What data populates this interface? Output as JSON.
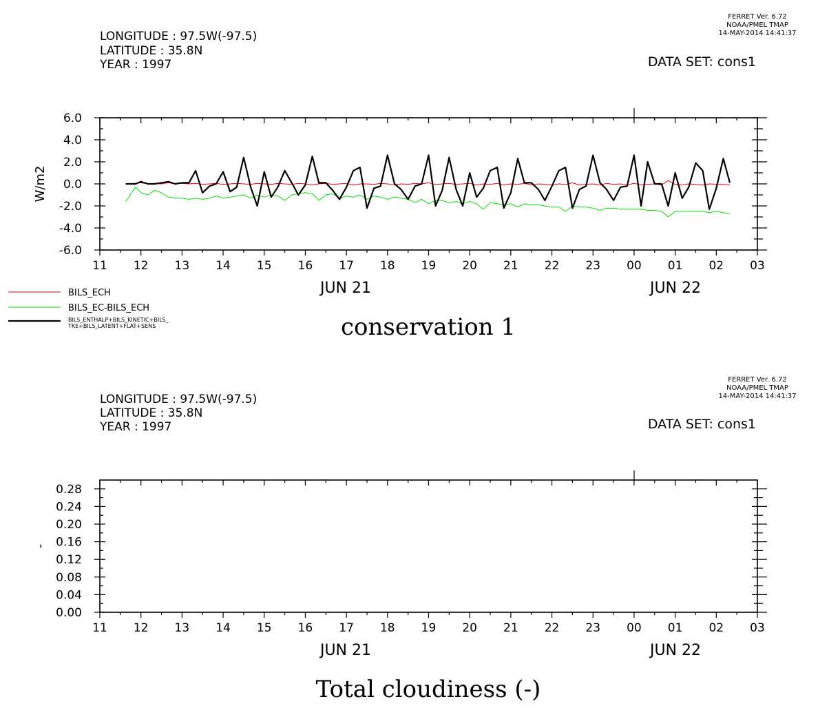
{
  "colors": {
    "red": "#e8000b",
    "green": "#00e000",
    "black": "#000000"
  },
  "panels": [
    {
      "header": {
        "ferret_version": "FERRET Ver. 6.72",
        "ferret_org": "NOAA/PMEL TMAP",
        "ferret_date": "14-MAY-2014 14:41:37",
        "longitude": "LONGITUDE : 97.5W(-97.5)",
        "latitude": "LATITUDE : 35.8N",
        "year": "YEAR : 1997",
        "dataset": "DATA SET: cons1"
      },
      "date_labels": [
        "JUN 21",
        "JUN 22"
      ],
      "title": "conservation 1"
    },
    {
      "header": {
        "ferret_version": "FERRET Ver. 6.72",
        "ferret_org": "NOAA/PMEL TMAP",
        "ferret_date": "14-MAY-2014 14:41:37",
        "longitude": "LONGITUDE : 97.5W(-97.5)",
        "latitude": "LATITUDE : 35.8N",
        "year": "YEAR : 1997",
        "dataset": "DATA SET: cons1"
      },
      "date_labels": [
        "JUN 21",
        "JUN 22"
      ],
      "title": "Total cloudiness (-)"
    }
  ],
  "chart_data": [
    {
      "type": "line",
      "title": "conservation 1",
      "ylabel": "W/m2",
      "xlabel": "",
      "x_hours": [
        11,
        12,
        13,
        14,
        15,
        16,
        17,
        18,
        19,
        20,
        21,
        22,
        23,
        24,
        25,
        26,
        27
      ],
      "xtick_labels": [
        "11",
        "12",
        "13",
        "14",
        "15",
        "16",
        "17",
        "18",
        "19",
        "20",
        "21",
        "22",
        "23",
        "00",
        "01",
        "02",
        "03"
      ],
      "xlim": [
        11,
        27
      ],
      "ylim": [
        -6,
        6
      ],
      "ytick_labels": [
        "6.0",
        "4.0",
        "2.0",
        "0.0",
        "-2.0",
        "-4.0",
        "-6.0"
      ],
      "ytick_values": [
        6,
        4,
        2,
        0,
        -2,
        -4,
        -6
      ],
      "legend": {
        "placement": "bottom-left"
      },
      "series": [
        {
          "name": "BILS_ECH",
          "color": "red",
          "x": [
            11.63,
            11.87,
            12.0,
            12.17,
            12.33,
            12.5,
            12.67,
            12.83,
            13.0,
            13.17,
            13.33,
            13.5,
            13.67,
            13.83,
            14.0,
            14.17,
            14.33,
            14.5,
            14.67,
            14.83,
            15.0,
            15.17,
            15.33,
            15.5,
            15.67,
            15.83,
            16.0,
            16.17,
            16.33,
            16.5,
            16.67,
            16.83,
            17.0,
            17.17,
            17.33,
            17.5,
            17.67,
            17.83,
            18.0,
            18.17,
            18.33,
            18.5,
            18.67,
            18.83,
            19.0,
            19.17,
            19.33,
            19.5,
            19.67,
            19.83,
            20.0,
            20.17,
            20.33,
            20.5,
            20.67,
            20.83,
            21.0,
            21.17,
            21.33,
            21.5,
            21.67,
            21.83,
            22.0,
            22.17,
            22.33,
            22.5,
            22.67,
            22.83,
            23.0,
            23.17,
            23.33,
            23.5,
            23.67,
            23.83,
            24.0,
            24.17,
            24.33,
            24.5,
            24.67,
            24.83,
            25.0,
            25.17,
            25.33,
            25.5,
            25.67,
            25.83,
            26.0,
            26.17,
            26.33
          ],
          "y": [
            0.0,
            0.05,
            0.1,
            0.0,
            0.05,
            0.0,
            0.1,
            0.0,
            0.05,
            0.0,
            0.05,
            -0.05,
            0.0,
            0.05,
            -0.05,
            0.0,
            0.05,
            0.0,
            -0.05,
            0.05,
            0.0,
            -0.05,
            0.05,
            0.0,
            -0.05,
            0.05,
            0.0,
            -0.1,
            0.0,
            0.05,
            -0.05,
            0.0,
            0.05,
            -0.1,
            0.0,
            0.0,
            -0.05,
            0.05,
            0.0,
            -0.1,
            0.0,
            -0.05,
            0.05,
            0.0,
            0.1,
            -0.05,
            0.0,
            0.05,
            -0.05,
            0.0,
            0.05,
            -0.1,
            0.0,
            -0.05,
            0.05,
            -0.1,
            0.0,
            -0.05,
            0.05,
            -0.1,
            0.0,
            -0.05,
            -0.1,
            0.0,
            -0.05,
            0.1,
            -0.1,
            -0.05,
            0.0,
            -0.1,
            0.05,
            -0.05,
            0.0,
            -0.1,
            0.05,
            -0.1,
            -0.05,
            0.0,
            -0.1,
            0.3,
            -0.05,
            -0.1,
            0.0,
            -0.05,
            -0.1,
            0.0,
            -0.05,
            -0.05,
            -0.1
          ]
        },
        {
          "name": "BILS_EC-BILS_ECH",
          "color": "green",
          "x": [
            11.63,
            11.87,
            12.0,
            12.17,
            12.33,
            12.5,
            12.67,
            12.83,
            13.0,
            13.17,
            13.33,
            13.5,
            13.67,
            13.83,
            14.0,
            14.17,
            14.33,
            14.5,
            14.67,
            14.83,
            15.0,
            15.17,
            15.33,
            15.5,
            15.67,
            15.83,
            16.0,
            16.17,
            16.33,
            16.5,
            16.67,
            16.83,
            17.0,
            17.17,
            17.33,
            17.5,
            17.67,
            17.83,
            18.0,
            18.17,
            18.33,
            18.5,
            18.67,
            18.83,
            19.0,
            19.17,
            19.33,
            19.5,
            19.67,
            19.83,
            20.0,
            20.17,
            20.33,
            20.5,
            20.67,
            20.83,
            21.0,
            21.17,
            21.33,
            21.5,
            21.67,
            21.83,
            22.0,
            22.17,
            22.33,
            22.5,
            22.67,
            22.83,
            23.0,
            23.17,
            23.33,
            23.5,
            23.67,
            23.83,
            24.0,
            24.17,
            24.33,
            24.5,
            24.67,
            24.83,
            25.0,
            25.17,
            25.33,
            25.5,
            25.67,
            25.83,
            26.0,
            26.17,
            26.33
          ],
          "y": [
            -1.6,
            -0.3,
            -0.8,
            -1.0,
            -0.6,
            -0.8,
            -1.2,
            -1.3,
            -1.3,
            -1.4,
            -1.3,
            -1.4,
            -1.3,
            -1.1,
            -1.3,
            -1.2,
            -1.1,
            -1.0,
            -1.3,
            -1.0,
            -1.2,
            -1.0,
            -1.1,
            -1.5,
            -1.0,
            -0.9,
            -0.8,
            -0.9,
            -1.5,
            -1.0,
            -0.9,
            -1.3,
            -1.1,
            -1.2,
            -1.0,
            -1.4,
            -1.1,
            -1.2,
            -1.4,
            -1.2,
            -1.3,
            -1.4,
            -1.7,
            -1.4,
            -1.8,
            -1.5,
            -1.5,
            -1.7,
            -1.6,
            -1.8,
            -1.6,
            -1.8,
            -2.3,
            -1.7,
            -1.8,
            -1.9,
            -1.8,
            -2.1,
            -1.8,
            -1.9,
            -1.9,
            -2.0,
            -2.1,
            -2.1,
            -2.5,
            -2.0,
            -2.1,
            -2.1,
            -2.2,
            -2.4,
            -2.2,
            -2.2,
            -2.3,
            -2.3,
            -2.3,
            -2.3,
            -2.4,
            -2.4,
            -2.5,
            -3.0,
            -2.5,
            -2.5,
            -2.5,
            -2.5,
            -2.5,
            -2.6,
            -2.5,
            -2.6,
            -2.7
          ]
        },
        {
          "name": "BILS_ENTHALP+BILS_KINETIC+BILS_TKE+BILS_LATENT+FLAT+SENS",
          "legend_lines": [
            "BILS_ENTHALP+BILS_KINETIC+BILS_",
            "TKE+BILS_LATENT+FLAT+SENS"
          ],
          "color": "black",
          "x": [
            11.63,
            11.87,
            12.0,
            12.17,
            12.33,
            12.5,
            12.67,
            12.83,
            13.0,
            13.17,
            13.33,
            13.5,
            13.67,
            13.83,
            14.0,
            14.17,
            14.33,
            14.5,
            14.67,
            14.83,
            15.0,
            15.17,
            15.33,
            15.5,
            15.67,
            15.83,
            16.0,
            16.17,
            16.33,
            16.5,
            16.67,
            16.83,
            17.0,
            17.17,
            17.33,
            17.5,
            17.67,
            17.83,
            18.0,
            18.17,
            18.33,
            18.5,
            18.67,
            18.83,
            19.0,
            19.17,
            19.33,
            19.5,
            19.67,
            19.83,
            20.0,
            20.17,
            20.33,
            20.5,
            20.67,
            20.83,
            21.0,
            21.17,
            21.33,
            21.5,
            21.67,
            21.83,
            22.0,
            22.17,
            22.33,
            22.5,
            22.67,
            22.83,
            23.0,
            23.17,
            23.33,
            23.5,
            23.67,
            23.83,
            24.0,
            24.17,
            24.33,
            24.5,
            24.67,
            24.83,
            25.0,
            25.17,
            25.33,
            25.5,
            25.67,
            25.83,
            26.0,
            26.17,
            26.33
          ],
          "y": [
            0.0,
            0.0,
            0.2,
            0.0,
            0.0,
            0.1,
            0.2,
            0.0,
            0.1,
            0.1,
            1.2,
            -0.8,
            -0.2,
            0.0,
            1.1,
            -0.7,
            -0.3,
            2.4,
            -0.3,
            -2.0,
            1.1,
            -1.2,
            -0.3,
            1.2,
            0.1,
            -1.0,
            -0.1,
            2.5,
            0.1,
            0.1,
            -0.6,
            -1.4,
            -0.3,
            1.2,
            1.5,
            -2.2,
            -0.4,
            -0.2,
            2.6,
            0.0,
            -0.5,
            -1.4,
            -0.2,
            0.0,
            2.6,
            -2.0,
            -0.6,
            2.4,
            -0.5,
            -2.0,
            1.0,
            -1.2,
            -0.4,
            1.2,
            1.5,
            -2.2,
            -0.8,
            2.3,
            0.1,
            0.1,
            -0.5,
            -1.5,
            -0.2,
            1.2,
            1.5,
            -2.2,
            -0.5,
            -0.2,
            2.6,
            0.1,
            -0.5,
            -1.5,
            -0.3,
            -0.2,
            2.6,
            -2.0,
            2.0,
            0.0,
            0.0,
            -2.0,
            1.0,
            -1.3,
            -0.3,
            1.9,
            1.2,
            -2.3,
            -0.4,
            2.3,
            0.1
          ]
        }
      ]
    },
    {
      "type": "line",
      "title": "Total cloudiness (-)",
      "ylabel": "-",
      "xlabel": "",
      "x_hours": [
        11,
        12,
        13,
        14,
        15,
        16,
        17,
        18,
        19,
        20,
        21,
        22,
        23,
        24,
        25,
        26,
        27
      ],
      "xtick_labels": [
        "11",
        "12",
        "13",
        "14",
        "15",
        "16",
        "17",
        "18",
        "19",
        "20",
        "21",
        "22",
        "23",
        "00",
        "01",
        "02",
        "03"
      ],
      "xlim": [
        11,
        27
      ],
      "ylim": [
        0,
        0.3
      ],
      "ytick_labels": [
        "0.28",
        "0.24",
        "0.20",
        "0.16",
        "0.12",
        "0.08",
        "0.04",
        "0.00"
      ],
      "ytick_values": [
        0.28,
        0.24,
        0.2,
        0.16,
        0.12,
        0.08,
        0.04,
        0.0
      ],
      "series": []
    }
  ]
}
